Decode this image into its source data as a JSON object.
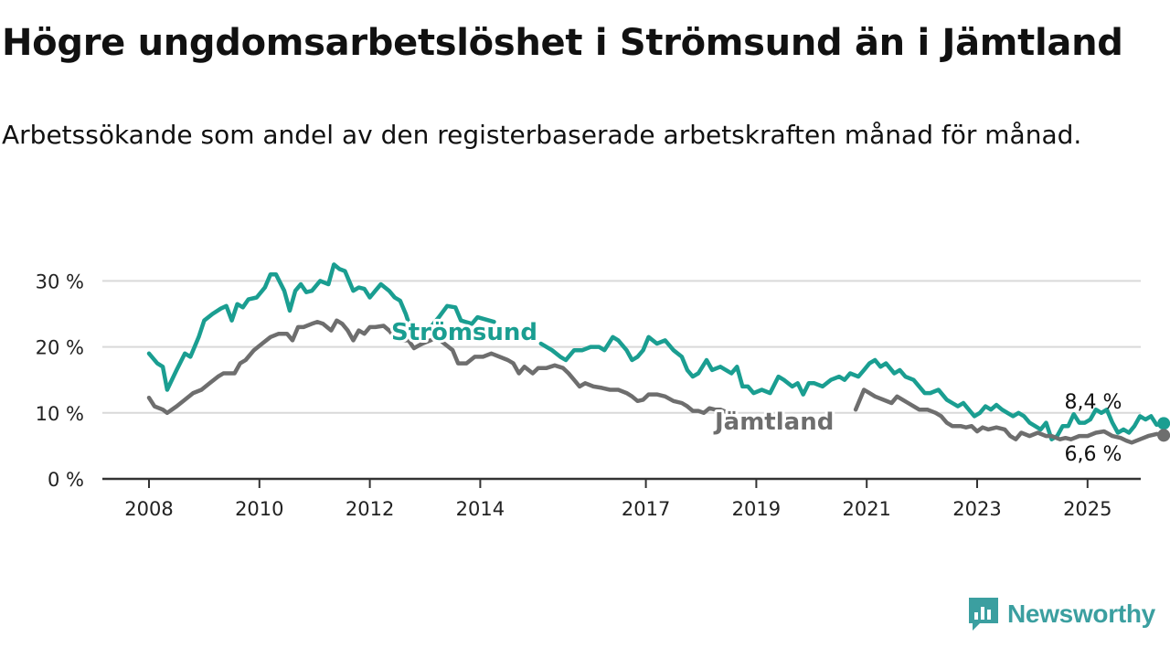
{
  "header": {
    "title": "Högre ungdomsarbetslöshet i Strömsund än i Jämtland",
    "subtitle": "Arbetssökande som andel av den registerbaserade arbetskraften månad för månad."
  },
  "brand": {
    "name": "Newsworthy",
    "icon": "newsworthy-logo-icon",
    "color": "#3b9fa0"
  },
  "chart_data": {
    "type": "line",
    "x_unit": "year",
    "y_unit": "percent",
    "ylim": [
      0,
      32
    ],
    "y_ticks": [
      {
        "value": 0,
        "label": "0 %"
      },
      {
        "value": 10,
        "label": "10 %"
      },
      {
        "value": 20,
        "label": "20 %"
      },
      {
        "value": 30,
        "label": "30 %"
      }
    ],
    "x_ticks": [
      {
        "value": 2008,
        "label": "2008"
      },
      {
        "value": 2010,
        "label": "2010"
      },
      {
        "value": 2012,
        "label": "2012"
      },
      {
        "value": 2014,
        "label": "2014"
      },
      {
        "value": 2017,
        "label": "2017"
      },
      {
        "value": 2019,
        "label": "2019"
      },
      {
        "value": 2021,
        "label": "2021"
      },
      {
        "value": 2023,
        "label": "2023"
      },
      {
        "value": 2025,
        "label": "2025"
      }
    ],
    "grid": true,
    "series": [
      {
        "name": "Strömsund",
        "color": "#1a9e91",
        "end_label": "8,4 %",
        "points": [
          [
            2008.0,
            19.0
          ],
          [
            2008.15,
            17.5
          ],
          [
            2008.25,
            17.0
          ],
          [
            2008.33,
            13.5
          ],
          [
            2008.5,
            16.5
          ],
          [
            2008.65,
            19.0
          ],
          [
            2008.75,
            18.5
          ],
          [
            2008.9,
            21.5
          ],
          [
            2009.0,
            24.0
          ],
          [
            2009.15,
            25.0
          ],
          [
            2009.3,
            25.8
          ],
          [
            2009.4,
            26.2
          ],
          [
            2009.5,
            24.0
          ],
          [
            2009.6,
            26.5
          ],
          [
            2009.7,
            26.0
          ],
          [
            2009.8,
            27.2
          ],
          [
            2009.95,
            27.5
          ],
          [
            2010.1,
            29.0
          ],
          [
            2010.2,
            31.0
          ],
          [
            2010.3,
            31.0
          ],
          [
            2010.45,
            28.5
          ],
          [
            2010.55,
            25.5
          ],
          [
            2010.65,
            28.5
          ],
          [
            2010.75,
            29.5
          ],
          [
            2010.85,
            28.3
          ],
          [
            2010.95,
            28.5
          ],
          [
            2011.1,
            30.0
          ],
          [
            2011.25,
            29.5
          ],
          [
            2011.35,
            32.5
          ],
          [
            2011.45,
            31.8
          ],
          [
            2011.55,
            31.5
          ],
          [
            2011.7,
            28.5
          ],
          [
            2011.8,
            29.0
          ],
          [
            2011.9,
            28.8
          ],
          [
            2012.0,
            27.5
          ],
          [
            2012.1,
            28.5
          ],
          [
            2012.2,
            29.5
          ],
          [
            2012.35,
            28.5
          ],
          [
            2012.45,
            27.5
          ],
          [
            2012.55,
            27.0
          ],
          [
            2012.65,
            25.0
          ],
          [
            2012.75,
            22.5
          ],
          [
            2013.1,
            23.0
          ],
          [
            2013.25,
            24.5
          ],
          [
            2013.4,
            26.2
          ],
          [
            2013.55,
            26.0
          ],
          [
            2013.65,
            24.0
          ],
          [
            2013.85,
            23.5
          ],
          [
            2013.95,
            24.5
          ],
          [
            2014.25,
            23.8
          ],
          [
            2015.1,
            20.5
          ],
          [
            2015.3,
            19.5
          ],
          [
            2015.45,
            18.5
          ],
          [
            2015.55,
            18.0
          ],
          [
            2015.7,
            19.5
          ],
          [
            2015.85,
            19.5
          ],
          [
            2016.0,
            20.0
          ],
          [
            2016.15,
            20.0
          ],
          [
            2016.25,
            19.5
          ],
          [
            2016.4,
            21.5
          ],
          [
            2016.5,
            21.0
          ],
          [
            2016.65,
            19.5
          ],
          [
            2016.75,
            18.0
          ],
          [
            2016.85,
            18.5
          ],
          [
            2016.95,
            19.5
          ],
          [
            2017.05,
            21.5
          ],
          [
            2017.2,
            20.5
          ],
          [
            2017.35,
            21.0
          ],
          [
            2017.5,
            19.5
          ],
          [
            2017.65,
            18.5
          ],
          [
            2017.75,
            16.5
          ],
          [
            2017.85,
            15.5
          ],
          [
            2017.95,
            16.0
          ],
          [
            2018.1,
            18.0
          ],
          [
            2018.2,
            16.5
          ],
          [
            2018.35,
            17.0
          ],
          [
            2018.45,
            16.5
          ],
          [
            2018.55,
            16.0
          ],
          [
            2018.65,
            17.0
          ],
          [
            2018.75,
            14.0
          ],
          [
            2018.85,
            14.0
          ],
          [
            2018.95,
            13.0
          ],
          [
            2019.1,
            13.5
          ],
          [
            2019.25,
            13.0
          ],
          [
            2019.4,
            15.5
          ],
          [
            2019.5,
            15.0
          ],
          [
            2019.65,
            14.0
          ],
          [
            2019.75,
            14.5
          ],
          [
            2019.85,
            12.8
          ],
          [
            2019.95,
            14.5
          ],
          [
            2020.05,
            14.5
          ],
          [
            2020.2,
            14.0
          ],
          [
            2020.35,
            15.0
          ],
          [
            2020.5,
            15.5
          ],
          [
            2020.6,
            15.0
          ],
          [
            2020.7,
            16.0
          ],
          [
            2020.85,
            15.5
          ],
          [
            2020.95,
            16.5
          ],
          [
            2021.05,
            17.5
          ],
          [
            2021.15,
            18.0
          ],
          [
            2021.25,
            17.0
          ],
          [
            2021.35,
            17.5
          ],
          [
            2021.5,
            16.0
          ],
          [
            2021.6,
            16.5
          ],
          [
            2021.7,
            15.5
          ],
          [
            2021.85,
            15.0
          ],
          [
            2021.95,
            14.0
          ],
          [
            2022.05,
            13.0
          ],
          [
            2022.15,
            13.0
          ],
          [
            2022.3,
            13.5
          ],
          [
            2022.45,
            12.0
          ],
          [
            2022.55,
            11.5
          ],
          [
            2022.65,
            11.0
          ],
          [
            2022.75,
            11.5
          ],
          [
            2022.85,
            10.5
          ],
          [
            2022.95,
            9.5
          ],
          [
            2023.05,
            10.0
          ],
          [
            2023.15,
            11.0
          ],
          [
            2023.25,
            10.5
          ],
          [
            2023.35,
            11.2
          ],
          [
            2023.45,
            10.5
          ],
          [
            2023.55,
            10.0
          ],
          [
            2023.65,
            9.5
          ],
          [
            2023.75,
            10.0
          ],
          [
            2023.85,
            9.5
          ],
          [
            2023.95,
            8.5
          ],
          [
            2024.05,
            8.0
          ],
          [
            2024.15,
            7.5
          ],
          [
            2024.25,
            8.5
          ],
          [
            2024.35,
            6.0
          ],
          [
            2024.45,
            6.5
          ],
          [
            2024.55,
            8.0
          ],
          [
            2024.65,
            8.0
          ],
          [
            2024.75,
            9.8
          ],
          [
            2024.85,
            8.5
          ],
          [
            2024.95,
            8.5
          ],
          [
            2025.05,
            9.0
          ],
          [
            2025.15,
            10.5
          ],
          [
            2025.25,
            10.0
          ],
          [
            2025.35,
            10.5
          ],
          [
            2025.45,
            8.5
          ],
          [
            2025.55,
            7.0
          ],
          [
            2025.65,
            7.5
          ],
          [
            2025.75,
            7.0
          ],
          [
            2025.85,
            8.0
          ],
          [
            2025.95,
            9.5
          ],
          [
            2026.05,
            9.0
          ],
          [
            2026.15,
            9.5
          ],
          [
            2026.25,
            8.2
          ],
          [
            2026.38,
            8.4
          ]
        ]
      },
      {
        "name": "Jämtland",
        "color": "#6e6e6e",
        "end_label": "6,6 %",
        "points": [
          [
            2008.0,
            12.3
          ],
          [
            2008.1,
            11.0
          ],
          [
            2008.25,
            10.5
          ],
          [
            2008.33,
            10.0
          ],
          [
            2008.5,
            11.0
          ],
          [
            2008.65,
            12.0
          ],
          [
            2008.8,
            13.0
          ],
          [
            2008.95,
            13.5
          ],
          [
            2009.1,
            14.5
          ],
          [
            2009.25,
            15.5
          ],
          [
            2009.35,
            16.0
          ],
          [
            2009.45,
            16.0
          ],
          [
            2009.55,
            16.0
          ],
          [
            2009.65,
            17.5
          ],
          [
            2009.75,
            18.0
          ],
          [
            2009.9,
            19.5
          ],
          [
            2010.05,
            20.5
          ],
          [
            2010.2,
            21.5
          ],
          [
            2010.35,
            22.0
          ],
          [
            2010.5,
            22.0
          ],
          [
            2010.6,
            21.0
          ],
          [
            2010.7,
            23.0
          ],
          [
            2010.8,
            23.0
          ],
          [
            2010.95,
            23.5
          ],
          [
            2011.05,
            23.8
          ],
          [
            2011.15,
            23.5
          ],
          [
            2011.3,
            22.5
          ],
          [
            2011.4,
            24.0
          ],
          [
            2011.5,
            23.5
          ],
          [
            2011.6,
            22.5
          ],
          [
            2011.7,
            21.0
          ],
          [
            2011.8,
            22.5
          ],
          [
            2011.9,
            22.0
          ],
          [
            2012.0,
            23.0
          ],
          [
            2012.1,
            23.0
          ],
          [
            2012.25,
            23.2
          ],
          [
            2012.35,
            22.5
          ],
          [
            2012.45,
            21.5
          ],
          [
            2012.55,
            21.0
          ],
          [
            2012.7,
            21.0
          ],
          [
            2012.8,
            19.8
          ],
          [
            2012.95,
            20.5
          ],
          [
            2013.1,
            21.0
          ],
          [
            2013.2,
            21.5
          ],
          [
            2013.35,
            20.5
          ],
          [
            2013.5,
            19.5
          ],
          [
            2013.6,
            17.5
          ],
          [
            2013.75,
            17.5
          ],
          [
            2013.9,
            18.5
          ],
          [
            2014.05,
            18.5
          ],
          [
            2014.2,
            19.0
          ],
          [
            2014.35,
            18.5
          ],
          [
            2014.5,
            18.0
          ],
          [
            2014.6,
            17.5
          ],
          [
            2014.7,
            16.0
          ],
          [
            2014.8,
            17.0
          ],
          [
            2014.95,
            16.0
          ],
          [
            2015.05,
            16.8
          ],
          [
            2015.2,
            16.8
          ],
          [
            2015.35,
            17.2
          ],
          [
            2015.5,
            16.8
          ],
          [
            2015.6,
            16.0
          ],
          [
            2015.7,
            15.0
          ],
          [
            2015.8,
            14.0
          ],
          [
            2015.9,
            14.5
          ],
          [
            2016.05,
            14.0
          ],
          [
            2016.2,
            13.8
          ],
          [
            2016.35,
            13.5
          ],
          [
            2016.5,
            13.5
          ],
          [
            2016.65,
            13.0
          ],
          [
            2016.75,
            12.5
          ],
          [
            2016.85,
            11.8
          ],
          [
            2016.95,
            12.0
          ],
          [
            2017.05,
            12.8
          ],
          [
            2017.2,
            12.8
          ],
          [
            2017.35,
            12.5
          ],
          [
            2017.5,
            11.8
          ],
          [
            2017.65,
            11.5
          ],
          [
            2017.75,
            11.0
          ],
          [
            2017.85,
            10.3
          ],
          [
            2017.95,
            10.3
          ],
          [
            2018.05,
            10.0
          ],
          [
            2018.15,
            10.7
          ],
          [
            2018.25,
            10.5
          ],
          [
            2018.35,
            10.5
          ],
          [
            2018.5,
            10.0
          ],
          [
            2018.6,
            9.5
          ],
          [
            2018.65,
            9.0
          ],
          [
            2020.8,
            10.5
          ],
          [
            2020.95,
            13.5
          ],
          [
            2021.05,
            13.0
          ],
          [
            2021.15,
            12.5
          ],
          [
            2021.3,
            12.0
          ],
          [
            2021.45,
            11.5
          ],
          [
            2021.55,
            12.5
          ],
          [
            2021.65,
            12.0
          ],
          [
            2021.75,
            11.5
          ],
          [
            2021.85,
            11.0
          ],
          [
            2021.95,
            10.5
          ],
          [
            2022.1,
            10.5
          ],
          [
            2022.25,
            10.0
          ],
          [
            2022.35,
            9.5
          ],
          [
            2022.45,
            8.5
          ],
          [
            2022.55,
            8.0
          ],
          [
            2022.7,
            8.0
          ],
          [
            2022.8,
            7.8
          ],
          [
            2022.9,
            8.0
          ],
          [
            2023.0,
            7.2
          ],
          [
            2023.1,
            7.8
          ],
          [
            2023.2,
            7.5
          ],
          [
            2023.35,
            7.8
          ],
          [
            2023.5,
            7.5
          ],
          [
            2023.6,
            6.5
          ],
          [
            2023.7,
            6.0
          ],
          [
            2023.8,
            7.0
          ],
          [
            2023.95,
            6.5
          ],
          [
            2024.1,
            7.0
          ],
          [
            2024.25,
            6.5
          ],
          [
            2024.35,
            6.5
          ],
          [
            2024.5,
            6.0
          ],
          [
            2024.6,
            6.2
          ],
          [
            2024.7,
            6.0
          ],
          [
            2024.85,
            6.5
          ],
          [
            2025.0,
            6.5
          ],
          [
            2025.15,
            7.0
          ],
          [
            2025.3,
            7.2
          ],
          [
            2025.45,
            6.5
          ],
          [
            2025.6,
            6.2
          ],
          [
            2025.7,
            5.8
          ],
          [
            2025.8,
            5.5
          ],
          [
            2025.95,
            6.0
          ],
          [
            2026.1,
            6.5
          ],
          [
            2026.25,
            6.8
          ],
          [
            2026.38,
            6.6
          ]
        ]
      }
    ]
  }
}
